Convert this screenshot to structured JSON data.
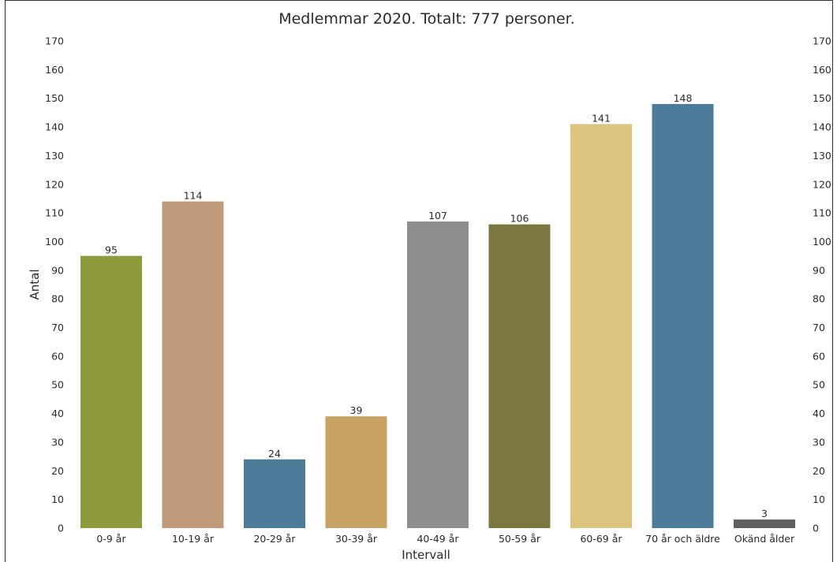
{
  "chart_data": {
    "type": "bar",
    "title": "Medlemmar 2020. Totalt: 777 personer.",
    "xlabel": "Intervall",
    "ylabel": "Antal",
    "ylim": [
      0,
      170
    ],
    "yticks": [
      0,
      10,
      20,
      30,
      40,
      50,
      60,
      70,
      80,
      90,
      100,
      110,
      120,
      130,
      140,
      150,
      160,
      170
    ],
    "ytick_labels": [
      "0",
      "10",
      "20",
      "30",
      "40",
      "50",
      "60",
      "70",
      "80",
      "90",
      "100",
      "110",
      "120",
      "130",
      "140",
      "150",
      "160",
      "170"
    ],
    "categories": [
      "0-9 år",
      "10-19 år",
      "20-29 år",
      "30-39 år",
      "40-49 år",
      "50-59 år",
      "60-69 år",
      "70 år och äldre",
      "Okänd ålder"
    ],
    "values": [
      95,
      114,
      24,
      39,
      107,
      106,
      141,
      148,
      3
    ],
    "value_labels": [
      "95",
      "114",
      "24",
      "39",
      "107",
      "106",
      "141",
      "148",
      "3"
    ],
    "colors": [
      "#8f9a3e",
      "#be9a7b",
      "#4d7c9b",
      "#c9a365",
      "#8e8e8e",
      "#7a7840",
      "#dbc47e",
      "#4d7c9b",
      "#5f5f5f"
    ],
    "grid": false,
    "legend": "none",
    "secondary_y_ticks": true
  }
}
